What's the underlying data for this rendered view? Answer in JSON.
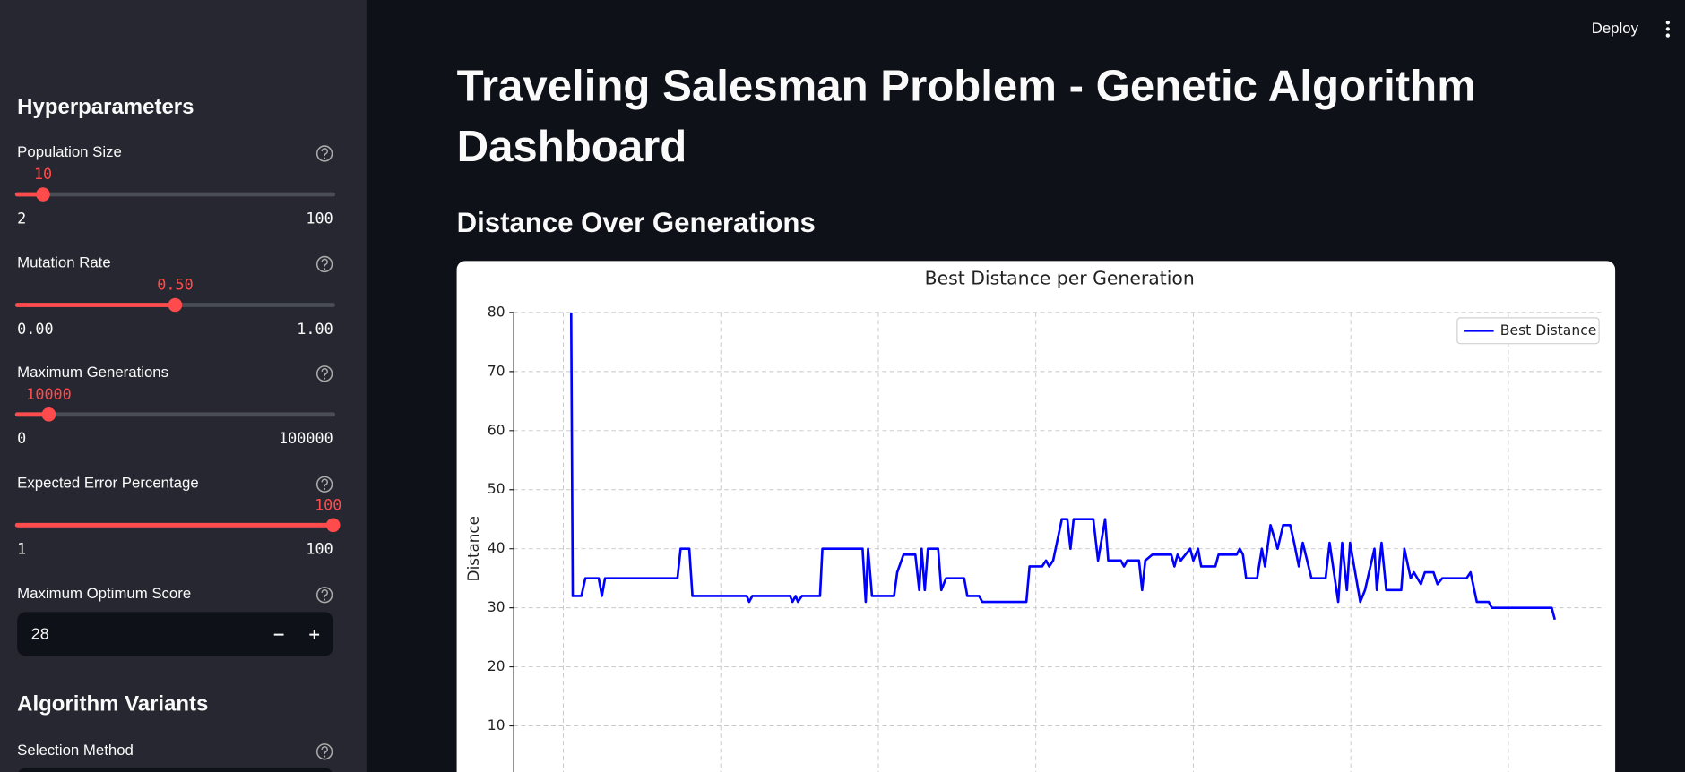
{
  "header": {
    "deploy": "Deploy"
  },
  "sidebar": {
    "title": "Hyperparameters",
    "sliders": [
      {
        "label": "Population Size",
        "value": "10",
        "min": "2",
        "max": "100"
      },
      {
        "label": "Mutation Rate",
        "value": "0.50",
        "min": "0.00",
        "max": "1.00"
      },
      {
        "label": "Maximum Generations",
        "value": "10000",
        "min": "0",
        "max": "100000"
      },
      {
        "label": "Expected Error Percentage",
        "value": "100",
        "min": "1",
        "max": "100"
      }
    ],
    "number_input": {
      "label": "Maximum Optimum Score",
      "value": "28"
    },
    "section": "Algorithm Variants",
    "select_label": "Selection Method"
  },
  "main": {
    "title": "Traveling Salesman Problem - Genetic Algorithm Dashboard",
    "subheader": "Distance Over Generations"
  },
  "chart_data": {
    "type": "line",
    "title": "Best Distance per Generation",
    "y_label": "Distance",
    "x": [
      1,
      1.2,
      2.3,
      2.8,
      4.5,
      4.9,
      5.3,
      14.5,
      14.9,
      16,
      16.4,
      23.3,
      23.6,
      24,
      28.8,
      29.1,
      29.5,
      29.8,
      30.3,
      32.6,
      32.9,
      38,
      38.4,
      38.7,
      39.2,
      42,
      42.4,
      43.2,
      44.7,
      45.2,
      45.5,
      45.9,
      46.3,
      47.6,
      48,
      48.6,
      50.9,
      51.3,
      52.8,
      53.2,
      58.8,
      59.2,
      60.8,
      61.3,
      61.7,
      62.2,
      63.3,
      64,
      64.4,
      64.8,
      67.3,
      67.9,
      68.8,
      69.2,
      70.8,
      71.2,
      71.6,
      73.1,
      73.5,
      73.9,
      74.8,
      77.2,
      77.6,
      78,
      78.4,
      79.6,
      80,
      80.6,
      81,
      82.8,
      83.2,
      85.5,
      85.9,
      86.3,
      86.7,
      88.1,
      88.7,
      89.1,
      89.8,
      90.7,
      91.4,
      92.3,
      92.8,
      93.4,
      93.9,
      95,
      96.8,
      97.3,
      98.4,
      98.9,
      99.5,
      99.9,
      101.2,
      101.8,
      103,
      103.3,
      103.9,
      104.5,
      106.4,
      106.8,
      107.6,
      108,
      108.9,
      109.4,
      110.5,
      111,
      111.6,
      114.7,
      115.2,
      116,
      117.5,
      117.9,
      125.5,
      125.9
    ],
    "series": [
      {
        "name": "Best Distance",
        "color": "#0000ff",
        "values": [
          80,
          32,
          32,
          35,
          35,
          32,
          35,
          35,
          40,
          40,
          32,
          32,
          31,
          32,
          32,
          31,
          32,
          31,
          32,
          32,
          40,
          40,
          31,
          40,
          32,
          32,
          36,
          39,
          39,
          33,
          40,
          33,
          40,
          40,
          33,
          35,
          35,
          32,
          32,
          31,
          31,
          37,
          37,
          38,
          37,
          38,
          45,
          45,
          40,
          45,
          45,
          38,
          45,
          38,
          38,
          37,
          38,
          38,
          33,
          38,
          39,
          39,
          37,
          39,
          38,
          40,
          38,
          40,
          37,
          37,
          39,
          39,
          40,
          39,
          35,
          35,
          40,
          37,
          44,
          40,
          44,
          44,
          41,
          37,
          41,
          35,
          35,
          41,
          31,
          41,
          33,
          41,
          31,
          33,
          40,
          33,
          41,
          33,
          33,
          40,
          35,
          36,
          34,
          36,
          36,
          34,
          35,
          35,
          36,
          31,
          31,
          30,
          30,
          28
        ]
      }
    ],
    "xlim": [
      -6.3,
      132.2
    ],
    "xticks": [
      0,
      20,
      40,
      60,
      80,
      100,
      120
    ],
    "ylim": [
      0,
      80
    ],
    "yticks": [
      10,
      20,
      30,
      40,
      50,
      60,
      70,
      80
    ],
    "grid": true,
    "legend": "upper right"
  }
}
